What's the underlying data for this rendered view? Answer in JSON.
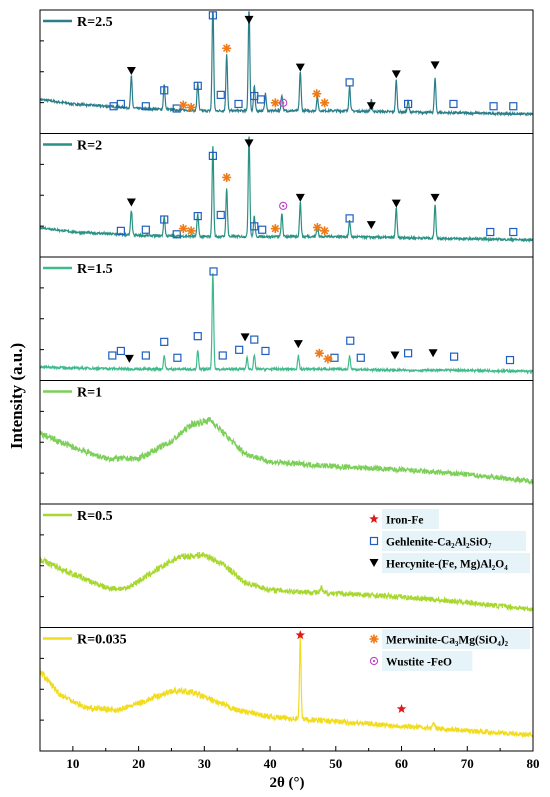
{
  "chart_data": {
    "type": "line",
    "xlabel": "2θ (°)",
    "ylabel": "Intensity (a.u.)",
    "xlim": [
      5,
      80
    ],
    "x_ticks": [
      10,
      20,
      30,
      40,
      50,
      60,
      70,
      80
    ],
    "x_tick_labels": [
      "10",
      "20",
      "30",
      "40",
      "50",
      "60",
      "70",
      "80"
    ],
    "grid": false,
    "panels": [
      {
        "label": "R=2.5",
        "color": "#2b7f8a",
        "baseline": [
          [
            5,
            0.3
          ],
          [
            10,
            0.26
          ],
          [
            20,
            0.22
          ],
          [
            30,
            0.2
          ],
          [
            40,
            0.2
          ],
          [
            50,
            0.2
          ],
          [
            60,
            0.19
          ],
          [
            70,
            0.18
          ],
          [
            80,
            0.17
          ]
        ],
        "peaks": [
          [
            18.9,
            0.28
          ],
          [
            23.9,
            0.22
          ],
          [
            29.0,
            0.25
          ],
          [
            31.3,
            0.95
          ],
          [
            33.4,
            0.5
          ],
          [
            36.8,
            0.92
          ],
          [
            37.6,
            0.22
          ],
          [
            39.3,
            0.15
          ],
          [
            41.8,
            0.14
          ],
          [
            44.6,
            0.35
          ],
          [
            47.2,
            0.12
          ],
          [
            52.1,
            0.22
          ],
          [
            55.4,
            0.1
          ],
          [
            59.2,
            0.28
          ],
          [
            65.1,
            0.3
          ],
          [
            61.0,
            0.1
          ]
        ],
        "markers": [
          {
            "x": 18.9,
            "h": 0.55,
            "type": "triangle"
          },
          {
            "x": 36.8,
            "h": 1.0,
            "type": "triangle"
          },
          {
            "x": 44.6,
            "h": 0.58,
            "type": "triangle"
          },
          {
            "x": 55.4,
            "h": 0.24,
            "type": "triangle"
          },
          {
            "x": 59.2,
            "h": 0.52,
            "type": "triangle"
          },
          {
            "x": 65.1,
            "h": 0.6,
            "type": "triangle"
          },
          {
            "x": 16.2,
            "h": 0.24,
            "type": "square"
          },
          {
            "x": 17.3,
            "h": 0.26,
            "type": "square"
          },
          {
            "x": 21.1,
            "h": 0.24,
            "type": "square"
          },
          {
            "x": 23.9,
            "h": 0.38,
            "type": "square"
          },
          {
            "x": 25.8,
            "h": 0.22,
            "type": "square"
          },
          {
            "x": 29.0,
            "h": 0.42,
            "type": "square"
          },
          {
            "x": 31.3,
            "h": 1.04,
            "type": "square"
          },
          {
            "x": 32.5,
            "h": 0.34,
            "type": "square"
          },
          {
            "x": 35.2,
            "h": 0.26,
            "type": "square"
          },
          {
            "x": 37.6,
            "h": 0.33,
            "type": "square"
          },
          {
            "x": 38.6,
            "h": 0.3,
            "type": "square"
          },
          {
            "x": 52.1,
            "h": 0.45,
            "type": "square"
          },
          {
            "x": 61.0,
            "h": 0.26,
            "type": "square"
          },
          {
            "x": 67.9,
            "h": 0.26,
            "type": "square"
          },
          {
            "x": 74.0,
            "h": 0.24,
            "type": "square"
          },
          {
            "x": 77.0,
            "h": 0.24,
            "type": "square"
          },
          {
            "x": 26.8,
            "h": 0.25,
            "type": "star"
          },
          {
            "x": 28.0,
            "h": 0.23,
            "type": "star"
          },
          {
            "x": 33.4,
            "h": 0.75,
            "type": "star"
          },
          {
            "x": 40.8,
            "h": 0.27,
            "type": "star"
          },
          {
            "x": 47.1,
            "h": 0.35,
            "type": "star"
          },
          {
            "x": 48.3,
            "h": 0.27,
            "type": "star"
          },
          {
            "x": 42.0,
            "h": 0.27,
            "type": "circle"
          }
        ]
      },
      {
        "label": "R=2",
        "color": "#2a9284",
        "baseline": [
          [
            5,
            0.26
          ],
          [
            10,
            0.22
          ],
          [
            20,
            0.19
          ],
          [
            30,
            0.18
          ],
          [
            40,
            0.18
          ],
          [
            50,
            0.18
          ],
          [
            60,
            0.17
          ],
          [
            70,
            0.16
          ],
          [
            80,
            0.15
          ]
        ],
        "peaks": [
          [
            18.9,
            0.22
          ],
          [
            23.9,
            0.17
          ],
          [
            29.0,
            0.2
          ],
          [
            31.3,
            0.8
          ],
          [
            33.4,
            0.42
          ],
          [
            36.8,
            0.9
          ],
          [
            37.6,
            0.18
          ],
          [
            41.8,
            0.2
          ],
          [
            44.6,
            0.3
          ],
          [
            47.2,
            0.1
          ],
          [
            52.1,
            0.14
          ],
          [
            59.2,
            0.26
          ],
          [
            65.1,
            0.3
          ]
        ],
        "markers": [
          {
            "x": 18.9,
            "h": 0.48,
            "type": "triangle"
          },
          {
            "x": 36.8,
            "h": 1.0,
            "type": "triangle"
          },
          {
            "x": 44.6,
            "h": 0.52,
            "type": "triangle"
          },
          {
            "x": 55.4,
            "h": 0.28,
            "type": "triangle"
          },
          {
            "x": 59.2,
            "h": 0.47,
            "type": "triangle"
          },
          {
            "x": 65.1,
            "h": 0.52,
            "type": "triangle"
          },
          {
            "x": 17.3,
            "h": 0.23,
            "type": "square"
          },
          {
            "x": 21.1,
            "h": 0.24,
            "type": "square"
          },
          {
            "x": 23.9,
            "h": 0.33,
            "type": "square"
          },
          {
            "x": 25.8,
            "h": 0.2,
            "type": "square"
          },
          {
            "x": 29.0,
            "h": 0.36,
            "type": "square"
          },
          {
            "x": 31.3,
            "h": 0.89,
            "type": "square"
          },
          {
            "x": 32.5,
            "h": 0.37,
            "type": "square"
          },
          {
            "x": 37.6,
            "h": 0.27,
            "type": "square"
          },
          {
            "x": 38.8,
            "h": 0.24,
            "type": "square"
          },
          {
            "x": 52.1,
            "h": 0.34,
            "type": "square"
          },
          {
            "x": 73.5,
            "h": 0.22,
            "type": "square"
          },
          {
            "x": 77.0,
            "h": 0.22,
            "type": "square"
          },
          {
            "x": 26.8,
            "h": 0.25,
            "type": "star"
          },
          {
            "x": 28.0,
            "h": 0.23,
            "type": "star"
          },
          {
            "x": 33.4,
            "h": 0.7,
            "type": "star"
          },
          {
            "x": 40.8,
            "h": 0.25,
            "type": "star"
          },
          {
            "x": 47.2,
            "h": 0.26,
            "type": "star"
          },
          {
            "x": 48.3,
            "h": 0.23,
            "type": "star"
          },
          {
            "x": 42.0,
            "h": 0.45,
            "type": "circle"
          }
        ]
      },
      {
        "label": "R=1.5",
        "color": "#3fba8c",
        "baseline": [
          [
            5,
            0.12
          ],
          [
            10,
            0.11
          ],
          [
            20,
            0.1
          ],
          [
            30,
            0.1
          ],
          [
            40,
            0.1
          ],
          [
            50,
            0.1
          ],
          [
            60,
            0.09
          ],
          [
            70,
            0.09
          ],
          [
            80,
            0.08
          ]
        ],
        "peaks": [
          [
            23.9,
            0.12
          ],
          [
            29.0,
            0.16
          ],
          [
            31.3,
            0.85
          ],
          [
            36.5,
            0.1
          ],
          [
            37.6,
            0.12
          ],
          [
            44.3,
            0.12
          ],
          [
            52.1,
            0.12
          ]
        ],
        "markers": [
          {
            "x": 18.6,
            "h": 0.19,
            "type": "triangle"
          },
          {
            "x": 36.2,
            "h": 0.38,
            "type": "triangle"
          },
          {
            "x": 44.3,
            "h": 0.32,
            "type": "triangle"
          },
          {
            "x": 59.0,
            "h": 0.22,
            "type": "triangle"
          },
          {
            "x": 64.8,
            "h": 0.24,
            "type": "triangle"
          },
          {
            "x": 16.0,
            "h": 0.22,
            "type": "square"
          },
          {
            "x": 17.3,
            "h": 0.26,
            "type": "square"
          },
          {
            "x": 21.1,
            "h": 0.22,
            "type": "square"
          },
          {
            "x": 23.9,
            "h": 0.34,
            "type": "square"
          },
          {
            "x": 25.9,
            "h": 0.2,
            "type": "square"
          },
          {
            "x": 29.0,
            "h": 0.39,
            "type": "square"
          },
          {
            "x": 31.4,
            "h": 0.96,
            "type": "square"
          },
          {
            "x": 32.8,
            "h": 0.22,
            "type": "square"
          },
          {
            "x": 35.3,
            "h": 0.27,
            "type": "square"
          },
          {
            "x": 37.6,
            "h": 0.36,
            "type": "square"
          },
          {
            "x": 39.3,
            "h": 0.26,
            "type": "square"
          },
          {
            "x": 49.8,
            "h": 0.2,
            "type": "square"
          },
          {
            "x": 52.2,
            "h": 0.35,
            "type": "square"
          },
          {
            "x": 53.8,
            "h": 0.2,
            "type": "square"
          },
          {
            "x": 61.0,
            "h": 0.24,
            "type": "square"
          },
          {
            "x": 68.0,
            "h": 0.21,
            "type": "square"
          },
          {
            "x": 76.5,
            "h": 0.18,
            "type": "square"
          },
          {
            "x": 47.5,
            "h": 0.24,
            "type": "star"
          },
          {
            "x": 48.8,
            "h": 0.19,
            "type": "star"
          }
        ]
      },
      {
        "label": "R=1",
        "color": "#7ccf58",
        "baseline": [
          [
            5,
            0.62
          ],
          [
            10,
            0.5
          ],
          [
            15,
            0.4
          ],
          [
            20,
            0.4
          ],
          [
            25,
            0.55
          ],
          [
            28,
            0.7
          ],
          [
            31,
            0.74
          ],
          [
            33,
            0.62
          ],
          [
            36,
            0.45
          ],
          [
            40,
            0.37
          ],
          [
            50,
            0.33
          ],
          [
            60,
            0.3
          ],
          [
            70,
            0.26
          ],
          [
            80,
            0.2
          ]
        ],
        "peaks": [],
        "markers": []
      },
      {
        "label": "R=0.5",
        "color": "#a8d830",
        "baseline": [
          [
            5,
            0.6
          ],
          [
            10,
            0.47
          ],
          [
            15,
            0.35
          ],
          [
            18,
            0.34
          ],
          [
            22,
            0.48
          ],
          [
            26,
            0.62
          ],
          [
            30,
            0.64
          ],
          [
            33,
            0.55
          ],
          [
            36,
            0.4
          ],
          [
            40,
            0.33
          ],
          [
            50,
            0.3
          ],
          [
            60,
            0.27
          ],
          [
            70,
            0.22
          ],
          [
            80,
            0.16
          ]
        ],
        "peaks": [
          [
            47.8,
            0.05
          ]
        ],
        "markers": []
      },
      {
        "label": "R=0.035",
        "color": "#f2dc1e",
        "baseline": [
          [
            5,
            0.7
          ],
          [
            8,
            0.5
          ],
          [
            12,
            0.38
          ],
          [
            17,
            0.36
          ],
          [
            21,
            0.44
          ],
          [
            25,
            0.53
          ],
          [
            28,
            0.52
          ],
          [
            31,
            0.45
          ],
          [
            35,
            0.36
          ],
          [
            40,
            0.3
          ],
          [
            50,
            0.26
          ],
          [
            60,
            0.22
          ],
          [
            70,
            0.18
          ],
          [
            80,
            0.14
          ]
        ],
        "peaks": [
          [
            44.6,
            0.7
          ],
          [
            64.9,
            0.05
          ]
        ],
        "markers": [
          {
            "x": 44.6,
            "h": 1.02,
            "type": "redstar"
          },
          {
            "x": 60.0,
            "h": 0.37,
            "type": "redstar"
          }
        ]
      }
    ],
    "legend_a": {
      "entries": [
        {
          "symbol": "redstar",
          "label": "Iron-Fe"
        },
        {
          "symbol": "square",
          "label": "Gehlenite-Ca₂Al₂SiO₇"
        },
        {
          "symbol": "triangle",
          "label": "Hercynite-(Fe, Mg)Al₂O₄"
        }
      ]
    },
    "legend_b": {
      "entries": [
        {
          "symbol": "star",
          "label": "Merwinite-Ca₃Mg(SiO₄)₂"
        },
        {
          "symbol": "circle",
          "label": "Wustite -FeO"
        }
      ]
    }
  }
}
